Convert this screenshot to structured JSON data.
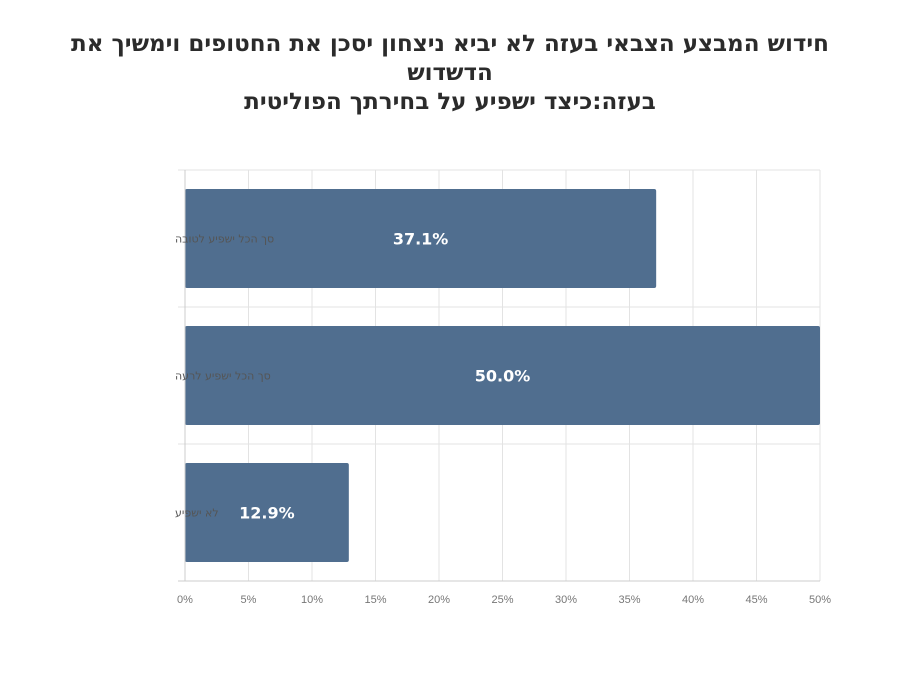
{
  "title": {
    "line1": "חידוש המבצע הצבאי בעזה לא יביא ניצחון יסכן את החטופים וימשיך את הדשדוש",
    "line2": "בעזה:כיצד ישפיע על בחירתך הפוליטית"
  },
  "colors": {
    "bar": "#506e8f",
    "grid": "#e3e3e3",
    "axis": "#cccccc"
  },
  "chart_data": {
    "type": "bar",
    "orientation": "horizontal",
    "categories": [
      "סך הכל ישפיע לטובה",
      "סך הכל ישפיע לרעה",
      "לא ישפיע"
    ],
    "values": [
      37.1,
      50.0,
      12.9
    ],
    "data_labels": [
      "37.1%",
      "50.0%",
      "12.9%"
    ],
    "xlim": [
      0,
      50
    ],
    "x_ticks": [
      0,
      5,
      10,
      15,
      20,
      25,
      30,
      35,
      40,
      45,
      50
    ],
    "x_tick_labels": [
      "0%",
      "5%",
      "10%",
      "15%",
      "20%",
      "25%",
      "30%",
      "35%",
      "40%",
      "45%",
      "50%"
    ],
    "grid": true,
    "legend": "none"
  }
}
